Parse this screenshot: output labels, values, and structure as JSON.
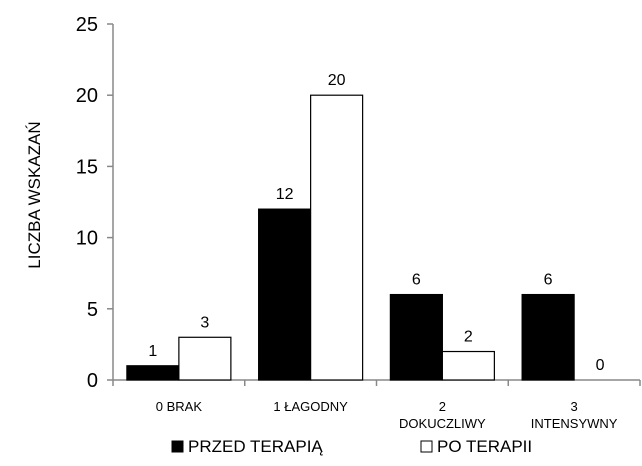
{
  "chart_data": {
    "type": "bar",
    "title": "",
    "xlabel": "",
    "ylabel": "LICZBA WSKAZAŃ",
    "ylim": [
      0,
      25
    ],
    "yticks": [
      0,
      5,
      10,
      15,
      20,
      25
    ],
    "grid": false,
    "legend": "bottom",
    "categories": [
      [
        "0 BRAK"
      ],
      [
        "1 ŁAGODNY"
      ],
      [
        "2",
        "DOKUCZLIWY"
      ],
      [
        "3",
        "INTENSYWNY"
      ]
    ],
    "series": [
      {
        "name": "PRZED TERAPIĄ",
        "color": "#000000",
        "values": [
          1,
          12,
          6,
          6
        ]
      },
      {
        "name": "PO TERAPII",
        "color": "#ffffff",
        "values": [
          3,
          20,
          2,
          0
        ]
      }
    ]
  }
}
